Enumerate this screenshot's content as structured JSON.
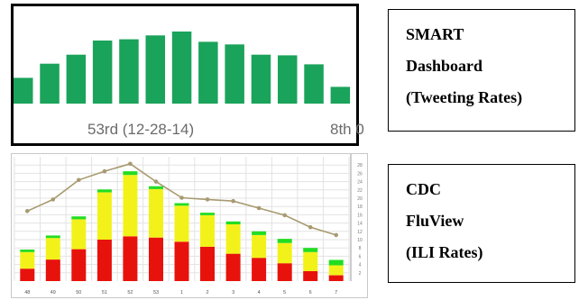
{
  "captions": {
    "smart": [
      "SMART",
      "Dashboard",
      "(Tweeting Rates)"
    ],
    "cdc": [
      "CDC",
      "FluView",
      "(ILI Rates)"
    ]
  },
  "colors": {
    "smart_bar": "#1aa35a",
    "smart_axis_text": "#6b6b6b",
    "cdc_red": "#e8120c",
    "cdc_yellow": "#f2f21a",
    "cdc_green": "#22dd22",
    "cdc_line": "#a89a70",
    "cdc_grid": "#e3e3e3"
  },
  "chart_data": [
    {
      "type": "bar",
      "values": [
        4.0,
        6.2,
        7.6,
        9.8,
        10.0,
        10.6,
        11.2,
        9.6,
        9.2,
        7.6,
        7.5,
        6.1,
        2.6
      ],
      "ylim": [
        0,
        14
      ],
      "tick_labels": [
        "53rd (12-28-14)",
        "8th 0"
      ],
      "grid": false
    },
    {
      "type": "bar",
      "categories": [
        "48",
        "49",
        "50",
        "51",
        "52",
        "53",
        "1",
        "2",
        "3",
        "4",
        "5",
        "6",
        "7"
      ],
      "series": [
        {
          "stack": "ili",
          "values": [
            3.0,
            5.2,
            7.7,
            10.0,
            10.8,
            10.5,
            9.5,
            8.3,
            6.6,
            5.6,
            4.3,
            2.4,
            1.4
          ]
        },
        {
          "stack": "ili",
          "values": [
            4.0,
            5.2,
            7.2,
            11.4,
            14.8,
            11.7,
            8.7,
            7.6,
            7.1,
            5.5,
            4.9,
            4.6,
            2.4
          ]
        },
        {
          "stack": "ili",
          "values": [
            0.6,
            0.6,
            0.7,
            0.7,
            0.9,
            0.7,
            0.6,
            0.6,
            0.7,
            0.9,
            1.0,
            1.0,
            1.3
          ]
        },
        {
          "type": "line",
          "values": [
            16.9,
            19.7,
            24.4,
            26.5,
            28.3,
            24.0,
            20.1,
            19.7,
            19.3,
            17.6,
            15.9,
            13.0,
            11.1
          ]
        }
      ],
      "ylim": [
        0,
        30
      ],
      "y_ticks": [
        "2",
        "4",
        "6",
        "8",
        "10",
        "12",
        "14",
        "16",
        "18",
        "20",
        "22",
        "24",
        "26",
        "28"
      ],
      "grid": true
    }
  ]
}
